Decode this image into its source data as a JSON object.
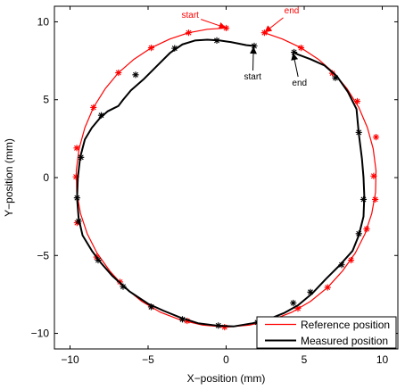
{
  "chart_data": {
    "type": "line",
    "title": "",
    "xlabel": "X−position (mm)",
    "ylabel": "Y−position (mm)",
    "xlim": [
      -11,
      11
    ],
    "ylim": [
      -11,
      11
    ],
    "xticks": [
      -10,
      -5,
      0,
      5,
      10
    ],
    "yticks": [
      -10,
      -5,
      0,
      5,
      10
    ],
    "xtick_labels": [
      "−10",
      "−5",
      "0",
      "5",
      "10"
    ],
    "ytick_labels": [
      "−10",
      "−5",
      "0",
      "5",
      "10"
    ],
    "grid": false,
    "legend_position": "bottom-right",
    "series": [
      {
        "name": "Reference position",
        "color": "#ff0000",
        "marker": "*",
        "line": [
          [
            0.0,
            9.6
          ],
          [
            -1.2,
            9.52
          ],
          [
            -2.4,
            9.3
          ],
          [
            -3.6,
            8.9
          ],
          [
            -4.8,
            8.33
          ],
          [
            -5.9,
            7.6
          ],
          [
            -6.9,
            6.73
          ],
          [
            -7.75,
            5.7
          ],
          [
            -8.5,
            4.5
          ],
          [
            -9.05,
            3.2
          ],
          [
            -9.42,
            1.85
          ],
          [
            -9.6,
            0.45
          ],
          [
            -9.57,
            -0.95
          ],
          [
            -9.33,
            -2.3
          ],
          [
            -8.9,
            -3.6
          ],
          [
            -8.27,
            -4.85
          ],
          [
            -7.45,
            -6.0
          ],
          [
            -6.5,
            -7.05
          ],
          [
            -5.4,
            -7.95
          ],
          [
            -4.2,
            -8.65
          ],
          [
            -2.9,
            -9.15
          ],
          [
            -1.5,
            -9.47
          ],
          [
            0.0,
            -9.6
          ],
          [
            1.5,
            -9.47
          ],
          [
            2.9,
            -9.15
          ],
          [
            4.2,
            -8.65
          ],
          [
            5.4,
            -7.95
          ],
          [
            6.5,
            -7.05
          ],
          [
            7.45,
            -6.0
          ],
          [
            8.27,
            -4.85
          ],
          [
            8.9,
            -3.6
          ],
          [
            9.33,
            -2.3
          ],
          [
            9.57,
            -0.95
          ],
          [
            9.6,
            0.45
          ],
          [
            9.42,
            1.85
          ],
          [
            9.05,
            3.2
          ],
          [
            8.5,
            4.5
          ],
          [
            7.75,
            5.7
          ],
          [
            6.9,
            6.73
          ],
          [
            5.9,
            7.6
          ],
          [
            4.8,
            8.33
          ],
          [
            3.6,
            8.9
          ],
          [
            2.45,
            9.3
          ]
        ],
        "markers": [
          [
            0.0,
            9.6
          ],
          [
            -2.4,
            9.3
          ],
          [
            -4.8,
            8.33
          ],
          [
            -6.9,
            6.73
          ],
          [
            -8.5,
            4.5
          ],
          [
            -9.57,
            1.9
          ],
          [
            -9.62,
            0.05
          ],
          [
            -9.55,
            -2.9
          ],
          [
            -8.3,
            -5.1
          ],
          [
            -6.8,
            -6.7
          ],
          [
            -4.8,
            -8.3
          ],
          [
            -2.5,
            -9.2
          ],
          [
            -0.1,
            -9.6
          ],
          [
            2.6,
            -9.2
          ],
          [
            4.6,
            -8.4
          ],
          [
            6.5,
            -7.05
          ],
          [
            8.0,
            -5.3
          ],
          [
            9.0,
            -3.3
          ],
          [
            9.55,
            -1.4
          ],
          [
            9.45,
            0.1
          ],
          [
            9.6,
            2.6
          ],
          [
            8.4,
            4.9
          ],
          [
            6.8,
            6.7
          ],
          [
            4.8,
            8.33
          ],
          [
            2.45,
            9.3
          ]
        ]
      },
      {
        "name": "Measured position",
        "color": "#000000",
        "marker": "*",
        "line": [
          [
            1.8,
            8.45
          ],
          [
            1.3,
            8.5
          ],
          [
            0.8,
            8.6
          ],
          [
            0.3,
            8.7
          ],
          [
            -0.4,
            8.8
          ],
          [
            -1.2,
            8.85
          ],
          [
            -2.0,
            8.8
          ],
          [
            -2.8,
            8.55
          ],
          [
            -3.6,
            8.0
          ],
          [
            -4.5,
            7.1
          ],
          [
            -5.3,
            6.3
          ],
          [
            -6.1,
            5.6
          ],
          [
            -6.6,
            5.0
          ],
          [
            -6.9,
            4.6
          ],
          [
            -7.2,
            4.45
          ],
          [
            -7.6,
            4.25
          ],
          [
            -8.1,
            3.8
          ],
          [
            -8.6,
            3.2
          ],
          [
            -9.05,
            2.45
          ],
          [
            -9.35,
            1.3
          ],
          [
            -9.5,
            0.0
          ],
          [
            -9.55,
            -1.3
          ],
          [
            -9.45,
            -2.6
          ],
          [
            -9.2,
            -3.7
          ],
          [
            -8.6,
            -4.7
          ],
          [
            -8.0,
            -5.5
          ],
          [
            -7.3,
            -6.3
          ],
          [
            -6.2,
            -7.3
          ],
          [
            -5.0,
            -8.1
          ],
          [
            -4.0,
            -8.55
          ],
          [
            -2.9,
            -9.0
          ],
          [
            -1.8,
            -9.35
          ],
          [
            -0.6,
            -9.5
          ],
          [
            0.5,
            -9.55
          ],
          [
            1.7,
            -9.35
          ],
          [
            2.7,
            -9.1
          ],
          [
            3.7,
            -8.7
          ],
          [
            4.6,
            -8.2
          ],
          [
            5.5,
            -7.45
          ],
          [
            6.4,
            -6.5
          ],
          [
            7.3,
            -5.6
          ],
          [
            8.1,
            -4.7
          ],
          [
            8.5,
            -3.7
          ],
          [
            8.8,
            -2.5
          ],
          [
            8.85,
            -1.2
          ],
          [
            8.8,
            0.0
          ],
          [
            8.7,
            1.2
          ],
          [
            8.5,
            2.8
          ],
          [
            8.35,
            4.4
          ],
          [
            7.8,
            5.5
          ],
          [
            7.1,
            6.5
          ],
          [
            6.3,
            7.2
          ],
          [
            5.4,
            7.6
          ],
          [
            4.6,
            7.9
          ],
          [
            4.35,
            8.05
          ]
        ],
        "markers": [
          [
            1.8,
            8.45
          ],
          [
            -0.6,
            8.8
          ],
          [
            -3.3,
            8.3
          ],
          [
            -5.8,
            6.6
          ],
          [
            -8.0,
            4.0
          ],
          [
            -9.3,
            1.3
          ],
          [
            -9.55,
            -1.3
          ],
          [
            -9.45,
            -2.8
          ],
          [
            -8.2,
            -5.3
          ],
          [
            -6.6,
            -7.0
          ],
          [
            -4.8,
            -8.3
          ],
          [
            -2.8,
            -9.1
          ],
          [
            -0.5,
            -9.5
          ],
          [
            2.0,
            -9.3
          ],
          [
            4.3,
            -8.05
          ],
          [
            5.4,
            -7.35
          ],
          [
            7.4,
            -5.6
          ],
          [
            8.5,
            -3.6
          ],
          [
            8.8,
            -1.4
          ],
          [
            8.5,
            2.9
          ],
          [
            7.0,
            6.4
          ],
          [
            4.35,
            8.05
          ]
        ]
      }
    ],
    "annotations": [
      {
        "text": "start",
        "color": "#ff0000",
        "text_xy": [
          -2.3,
          10.25
        ],
        "arrow_to": [
          -0.05,
          9.62
        ]
      },
      {
        "text": "end",
        "color": "#ff0000",
        "text_xy": [
          4.2,
          10.55
        ],
        "arrow_to": [
          2.5,
          9.35
        ]
      },
      {
        "text": "start",
        "color": "#000000",
        "text_xy": [
          1.7,
          6.3
        ],
        "arrow_to": [
          1.75,
          8.35
        ]
      },
      {
        "text": "end",
        "color": "#000000",
        "text_xy": [
          4.7,
          5.9
        ],
        "arrow_to": [
          4.3,
          7.95
        ]
      }
    ]
  }
}
